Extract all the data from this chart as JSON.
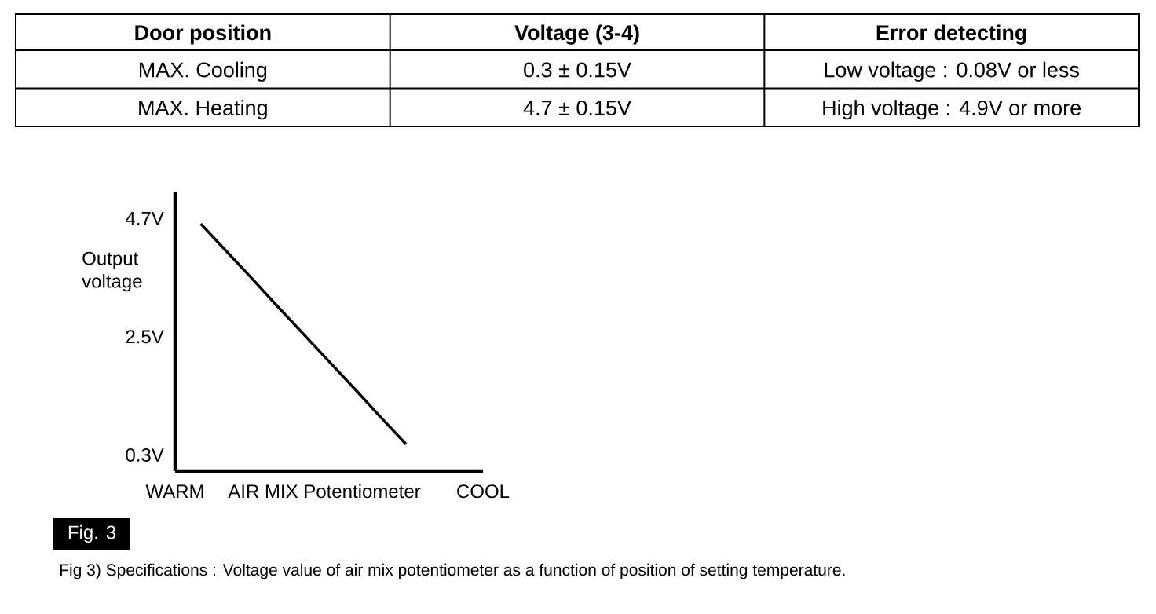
{
  "chart_data": [
    {
      "type": "other",
      "categories": [
        "Door position",
        "Voltage (3-4)",
        "Error detecting"
      ],
      "annotations": [
        "MAX. Cooling",
        "0.3 ± 0.15V",
        "Low voltage : 0.08V or less",
        "MAX. Heating",
        "4.7 ± 0.15V",
        "High voltage : 4.9V or more"
      ]
    },
    {
      "type": "line",
      "xlabel": "AIR MIX Potentiometer",
      "ylabel": "Output voltage",
      "categories": [
        "WARM",
        null,
        null,
        null,
        null,
        null,
        null,
        null,
        null,
        null,
        null,
        null,
        "COOL"
      ],
      "values": [
        null,
        4.6,
        4.09,
        3.58,
        3.06,
        2.55,
        2.04,
        1.53,
        1.01,
        0.5,
        null,
        null,
        null
      ],
      "color": "#000000",
      "ylim": [
        0,
        5.2
      ],
      "yticks": [
        {
          "value": 0.3,
          "label": "0.3V"
        },
        {
          "value": 2.5,
          "label": "2.5V"
        },
        {
          "value": 4.7,
          "label": "4.7V"
        }
      ],
      "annotations": [
        "Fig. 3",
        "Fig 3) Specifications : Voltage value of air mix potentiometer as a function of position of setting temperature."
      ]
    }
  ]
}
